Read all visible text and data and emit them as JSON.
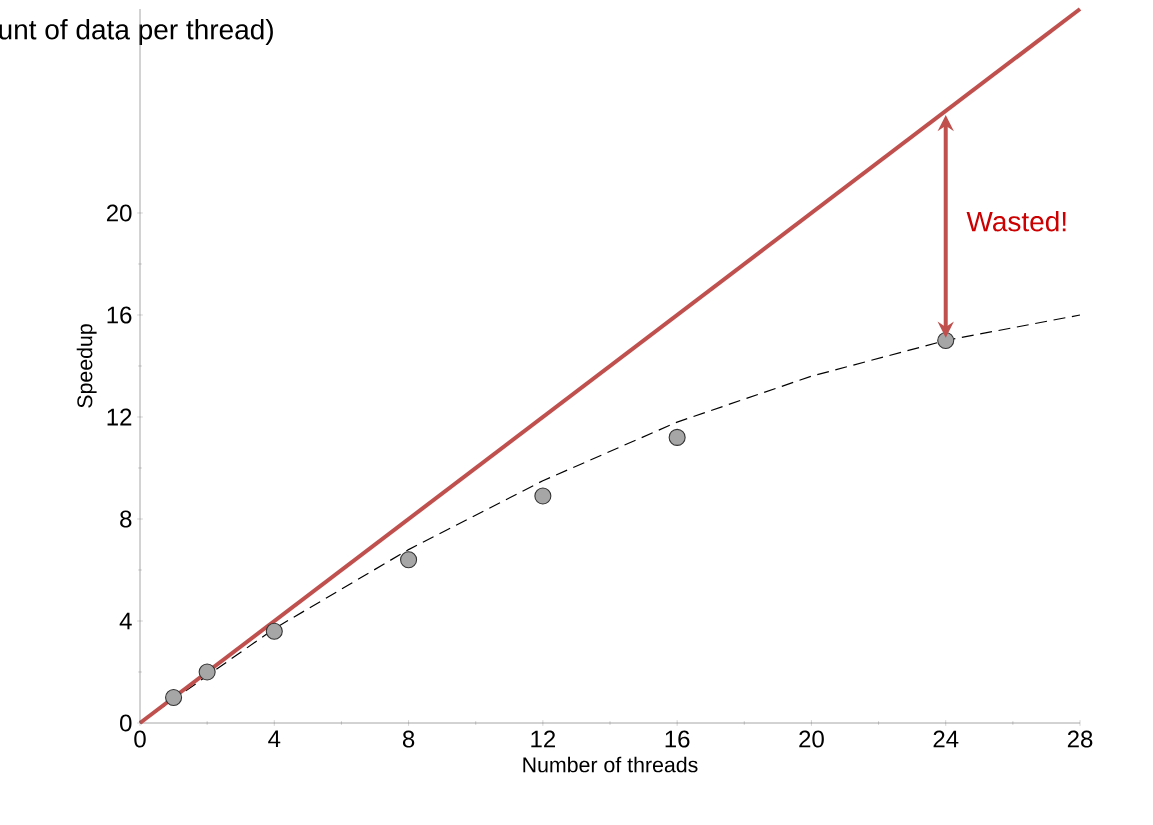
{
  "chart_data": {
    "type": "scatter",
    "title": "unt of data per thread)",
    "xlabel": "Number of threads",
    "ylabel": "Speedup",
    "xlim": [
      0,
      28
    ],
    "ylim": [
      0,
      28
    ],
    "xticks": [
      0,
      4,
      8,
      12,
      16,
      20,
      24,
      28
    ],
    "yticks": [
      0,
      4,
      8,
      12,
      16,
      20
    ],
    "series": [
      {
        "type": "line",
        "color": "#000000",
        "line_style": "dashed",
        "marker": "none",
        "x": [
          0,
          4,
          8,
          12,
          16,
          20,
          24,
          28
        ],
        "values": [
          0,
          3.7,
          6.8,
          9.5,
          11.8,
          13.6,
          15.0,
          16.0
        ]
      },
      {
        "color": "#a6a6a6",
        "marker": "circle",
        "x": [
          1,
          2,
          4,
          8,
          12,
          16,
          24
        ],
        "values": [
          1.0,
          2.0,
          3.6,
          6.4,
          8.9,
          11.2,
          15.0
        ]
      },
      {
        "type": "line",
        "color": "#c0504d",
        "line_style": "solid",
        "marker": "none",
        "x": [
          0,
          28
        ],
        "values": [
          0,
          28
        ]
      }
    ],
    "annotations": [
      "Wasted!"
    ],
    "grid": false
  }
}
